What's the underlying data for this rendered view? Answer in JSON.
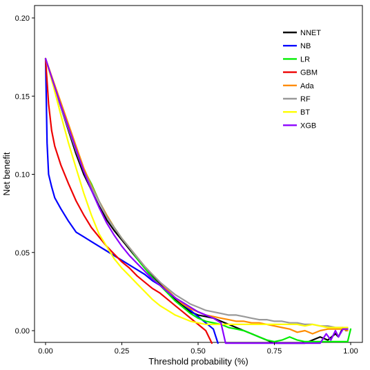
{
  "chart_data": {
    "type": "line",
    "title": "",
    "xlabel": "Threshold probability (%)",
    "ylabel": "Net benefit",
    "xlim": [
      0,
      1
    ],
    "ylim": [
      -0.008,
      0.2
    ],
    "x_ticks": [
      "0.00",
      "0.25",
      "0.50",
      "0.75",
      "1.00"
    ],
    "y_ticks": [
      "0.00",
      "0.05",
      "0.10",
      "0.15",
      "0.20"
    ],
    "grid": false,
    "legend_position": "top-right",
    "series": [
      {
        "name": "NNET",
        "color": "#000000",
        "points": [
          [
            0,
            0.174
          ],
          [
            0.025,
            0.158
          ],
          [
            0.05,
            0.143
          ],
          [
            0.075,
            0.128
          ],
          [
            0.1,
            0.113
          ],
          [
            0.125,
            0.1
          ],
          [
            0.15,
            0.09
          ],
          [
            0.175,
            0.08
          ],
          [
            0.2,
            0.071
          ],
          [
            0.225,
            0.064
          ],
          [
            0.25,
            0.058
          ],
          [
            0.275,
            0.052
          ],
          [
            0.3,
            0.046
          ],
          [
            0.325,
            0.04
          ],
          [
            0.35,
            0.035
          ],
          [
            0.375,
            0.03
          ],
          [
            0.4,
            0.025
          ],
          [
            0.425,
            0.02
          ],
          [
            0.45,
            0.016
          ],
          [
            0.475,
            0.012
          ],
          [
            0.5,
            0.01
          ],
          [
            0.525,
            0.009
          ],
          [
            0.55,
            0.008
          ],
          [
            0.575,
            0.006
          ],
          [
            0.6,
            0.004
          ],
          [
            0.625,
            0.002
          ],
          [
            0.65,
            0.0
          ],
          [
            0.675,
            -0.002
          ],
          [
            0.7,
            -0.004
          ],
          [
            0.725,
            -0.006
          ],
          [
            0.75,
            -0.008
          ],
          [
            0.85,
            -0.008
          ],
          [
            0.875,
            -0.006
          ],
          [
            0.9,
            -0.004
          ],
          [
            0.925,
            -0.006
          ],
          [
            0.95,
            -0.002
          ],
          [
            0.96,
            -0.004
          ],
          [
            0.975,
            0.002
          ],
          [
            0.985,
            0.0
          ]
        ]
      },
      {
        "name": "NB",
        "color": "#0000ff",
        "points": [
          [
            0,
            0.174
          ],
          [
            0.005,
            0.12
          ],
          [
            0.01,
            0.1
          ],
          [
            0.02,
            0.092
          ],
          [
            0.03,
            0.085
          ],
          [
            0.05,
            0.078
          ],
          [
            0.075,
            0.07
          ],
          [
            0.1,
            0.063
          ],
          [
            0.125,
            0.06
          ],
          [
            0.15,
            0.057
          ],
          [
            0.175,
            0.054
          ],
          [
            0.2,
            0.051
          ],
          [
            0.225,
            0.048
          ],
          [
            0.25,
            0.045
          ],
          [
            0.275,
            0.042
          ],
          [
            0.3,
            0.039
          ],
          [
            0.325,
            0.036
          ],
          [
            0.35,
            0.032
          ],
          [
            0.375,
            0.029
          ],
          [
            0.4,
            0.025
          ],
          [
            0.425,
            0.021
          ],
          [
            0.45,
            0.017
          ],
          [
            0.475,
            0.013
          ],
          [
            0.5,
            0.009
          ],
          [
            0.525,
            0.005
          ],
          [
            0.55,
            0.001
          ],
          [
            0.565,
            -0.008
          ]
        ]
      },
      {
        "name": "LR",
        "color": "#00ee00",
        "points": [
          [
            0,
            0.174
          ],
          [
            0.025,
            0.158
          ],
          [
            0.05,
            0.144
          ],
          [
            0.075,
            0.13
          ],
          [
            0.1,
            0.116
          ],
          [
            0.125,
            0.103
          ],
          [
            0.15,
            0.094
          ],
          [
            0.175,
            0.083
          ],
          [
            0.2,
            0.074
          ],
          [
            0.225,
            0.066
          ],
          [
            0.25,
            0.059
          ],
          [
            0.275,
            0.053
          ],
          [
            0.3,
            0.046
          ],
          [
            0.325,
            0.04
          ],
          [
            0.35,
            0.034
          ],
          [
            0.375,
            0.029
          ],
          [
            0.4,
            0.024
          ],
          [
            0.425,
            0.019
          ],
          [
            0.45,
            0.015
          ],
          [
            0.475,
            0.011
          ],
          [
            0.5,
            0.008
          ],
          [
            0.525,
            0.006
          ],
          [
            0.55,
            0.005
          ],
          [
            0.575,
            0.004
          ],
          [
            0.6,
            0.002
          ],
          [
            0.625,
            0.001
          ],
          [
            0.65,
            0.0
          ],
          [
            0.675,
            -0.002
          ],
          [
            0.7,
            -0.004
          ],
          [
            0.725,
            -0.006
          ],
          [
            0.75,
            -0.007
          ],
          [
            0.775,
            -0.006
          ],
          [
            0.8,
            -0.004
          ],
          [
            0.825,
            -0.006
          ],
          [
            0.85,
            -0.007
          ],
          [
            0.9,
            -0.007
          ],
          [
            0.95,
            -0.007
          ],
          [
            0.99,
            -0.007
          ],
          [
            1.0,
            0.001
          ]
        ]
      },
      {
        "name": "GBM",
        "color": "#ee0000",
        "points": [
          [
            0,
            0.174
          ],
          [
            0.01,
            0.145
          ],
          [
            0.02,
            0.128
          ],
          [
            0.03,
            0.118
          ],
          [
            0.05,
            0.106
          ],
          [
            0.075,
            0.094
          ],
          [
            0.1,
            0.083
          ],
          [
            0.125,
            0.074
          ],
          [
            0.15,
            0.066
          ],
          [
            0.175,
            0.06
          ],
          [
            0.2,
            0.054
          ],
          [
            0.225,
            0.049
          ],
          [
            0.25,
            0.044
          ],
          [
            0.275,
            0.04
          ],
          [
            0.3,
            0.035
          ],
          [
            0.325,
            0.031
          ],
          [
            0.35,
            0.027
          ],
          [
            0.375,
            0.024
          ],
          [
            0.4,
            0.02
          ],
          [
            0.425,
            0.016
          ],
          [
            0.45,
            0.012
          ],
          [
            0.475,
            0.008
          ],
          [
            0.5,
            0.004
          ],
          [
            0.525,
            0.0
          ],
          [
            0.545,
            -0.008
          ]
        ]
      },
      {
        "name": "Ada",
        "color": "#ff8c00",
        "points": [
          [
            0,
            0.174
          ],
          [
            0.025,
            0.16
          ],
          [
            0.05,
            0.146
          ],
          [
            0.075,
            0.132
          ],
          [
            0.1,
            0.118
          ],
          [
            0.125,
            0.104
          ],
          [
            0.15,
            0.093
          ],
          [
            0.175,
            0.083
          ],
          [
            0.2,
            0.074
          ],
          [
            0.225,
            0.066
          ],
          [
            0.25,
            0.059
          ],
          [
            0.275,
            0.053
          ],
          [
            0.3,
            0.047
          ],
          [
            0.325,
            0.041
          ],
          [
            0.35,
            0.036
          ],
          [
            0.375,
            0.031
          ],
          [
            0.4,
            0.026
          ],
          [
            0.425,
            0.021
          ],
          [
            0.45,
            0.017
          ],
          [
            0.475,
            0.014
          ],
          [
            0.5,
            0.012
          ],
          [
            0.525,
            0.01
          ],
          [
            0.55,
            0.009
          ],
          [
            0.575,
            0.008
          ],
          [
            0.6,
            0.007
          ],
          [
            0.625,
            0.006
          ],
          [
            0.65,
            0.006
          ],
          [
            0.675,
            0.005
          ],
          [
            0.7,
            0.005
          ],
          [
            0.725,
            0.004
          ],
          [
            0.75,
            0.003
          ],
          [
            0.775,
            0.002
          ],
          [
            0.8,
            0.001
          ],
          [
            0.825,
            -0.001
          ],
          [
            0.85,
            0.0
          ],
          [
            0.875,
            -0.002
          ],
          [
            0.9,
            0.0
          ],
          [
            0.925,
            0.001
          ],
          [
            0.95,
            0.001
          ],
          [
            0.975,
            0.001
          ],
          [
            0.99,
            0.0
          ]
        ]
      },
      {
        "name": "RF",
        "color": "#999999",
        "points": [
          [
            0,
            0.174
          ],
          [
            0.025,
            0.158
          ],
          [
            0.05,
            0.143
          ],
          [
            0.075,
            0.129
          ],
          [
            0.1,
            0.115
          ],
          [
            0.125,
            0.102
          ],
          [
            0.15,
            0.092
          ],
          [
            0.175,
            0.083
          ],
          [
            0.2,
            0.073
          ],
          [
            0.225,
            0.066
          ],
          [
            0.25,
            0.059
          ],
          [
            0.275,
            0.053
          ],
          [
            0.3,
            0.047
          ],
          [
            0.325,
            0.041
          ],
          [
            0.35,
            0.036
          ],
          [
            0.375,
            0.031
          ],
          [
            0.4,
            0.027
          ],
          [
            0.425,
            0.023
          ],
          [
            0.45,
            0.02
          ],
          [
            0.475,
            0.017
          ],
          [
            0.5,
            0.015
          ],
          [
            0.525,
            0.013
          ],
          [
            0.55,
            0.012
          ],
          [
            0.575,
            0.011
          ],
          [
            0.6,
            0.01
          ],
          [
            0.625,
            0.01
          ],
          [
            0.65,
            0.009
          ],
          [
            0.675,
            0.008
          ],
          [
            0.7,
            0.007
          ],
          [
            0.725,
            0.007
          ],
          [
            0.75,
            0.006
          ],
          [
            0.775,
            0.006
          ],
          [
            0.8,
            0.005
          ],
          [
            0.825,
            0.005
          ],
          [
            0.85,
            0.004
          ],
          [
            0.875,
            0.004
          ],
          [
            0.9,
            0.003
          ],
          [
            0.925,
            0.003
          ],
          [
            0.95,
            0.002
          ],
          [
            0.975,
            0.002
          ],
          [
            0.99,
            0.001
          ]
        ]
      },
      {
        "name": "BT",
        "color": "#ffff00",
        "points": [
          [
            0,
            0.174
          ],
          [
            0.025,
            0.157
          ],
          [
            0.05,
            0.138
          ],
          [
            0.075,
            0.12
          ],
          [
            0.1,
            0.104
          ],
          [
            0.125,
            0.088
          ],
          [
            0.15,
            0.074
          ],
          [
            0.175,
            0.062
          ],
          [
            0.2,
            0.054
          ],
          [
            0.225,
            0.046
          ],
          [
            0.25,
            0.04
          ],
          [
            0.275,
            0.035
          ],
          [
            0.3,
            0.03
          ],
          [
            0.325,
            0.025
          ],
          [
            0.35,
            0.02
          ],
          [
            0.375,
            0.016
          ],
          [
            0.4,
            0.013
          ],
          [
            0.425,
            0.01
          ],
          [
            0.45,
            0.008
          ],
          [
            0.475,
            0.006
          ],
          [
            0.5,
            0.005
          ],
          [
            0.525,
            0.004
          ],
          [
            0.55,
            0.004
          ],
          [
            0.575,
            0.004
          ],
          [
            0.6,
            0.004
          ],
          [
            0.625,
            0.004
          ],
          [
            0.65,
            0.004
          ],
          [
            0.675,
            0.004
          ],
          [
            0.7,
            0.004
          ],
          [
            0.725,
            0.004
          ],
          [
            0.75,
            0.004
          ],
          [
            0.775,
            0.004
          ],
          [
            0.8,
            0.004
          ],
          [
            0.825,
            0.004
          ],
          [
            0.85,
            0.003
          ],
          [
            0.875,
            0.004
          ],
          [
            0.9,
            0.003
          ],
          [
            0.925,
            0.002
          ],
          [
            0.95,
            0.002
          ],
          [
            0.975,
            0.002
          ],
          [
            0.99,
            0.002
          ]
        ]
      },
      {
        "name": "XGB",
        "color": "#8b00ff",
        "points": [
          [
            0,
            0.174
          ],
          [
            0.025,
            0.159
          ],
          [
            0.05,
            0.144
          ],
          [
            0.075,
            0.13
          ],
          [
            0.1,
            0.116
          ],
          [
            0.125,
            0.102
          ],
          [
            0.15,
            0.09
          ],
          [
            0.175,
            0.079
          ],
          [
            0.2,
            0.069
          ],
          [
            0.225,
            0.061
          ],
          [
            0.25,
            0.054
          ],
          [
            0.275,
            0.048
          ],
          [
            0.3,
            0.043
          ],
          [
            0.325,
            0.038
          ],
          [
            0.35,
            0.033
          ],
          [
            0.375,
            0.029
          ],
          [
            0.4,
            0.025
          ],
          [
            0.425,
            0.021
          ],
          [
            0.45,
            0.018
          ],
          [
            0.475,
            0.015
          ],
          [
            0.5,
            0.012
          ],
          [
            0.525,
            0.01
          ],
          [
            0.55,
            0.008
          ],
          [
            0.575,
            0.005
          ],
          [
            0.59,
            -0.008
          ],
          [
            0.9,
            -0.008
          ],
          [
            0.92,
            -0.002
          ],
          [
            0.935,
            -0.006
          ],
          [
            0.95,
            0.0
          ],
          [
            0.96,
            -0.004
          ],
          [
            0.975,
            0.001
          ],
          [
            0.99,
            0.001
          ]
        ]
      }
    ]
  }
}
